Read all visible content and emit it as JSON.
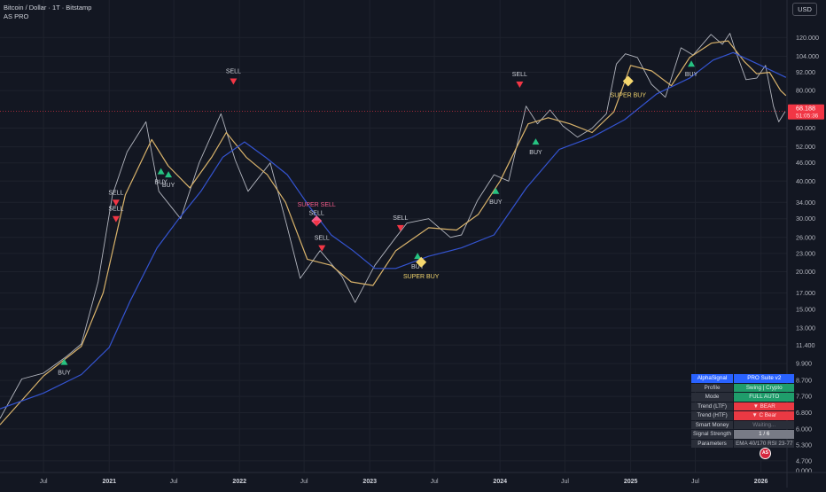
{
  "header": {
    "symbol_title": "Bitcoin / Dollar · 1T · Bitstamp",
    "indicator_name": "AS PRO",
    "currency": "USD"
  },
  "price_scale": {
    "log_scale": true,
    "ticks": [
      "120.000",
      "104.000",
      "92.000",
      "80.000",
      "60.000",
      "52.000",
      "46.000",
      "40.000",
      "34.000",
      "30.000",
      "26.000",
      "23.000",
      "20.000",
      "17.000",
      "15.000",
      "13.000",
      "11.400",
      "9.900",
      "8.700",
      "7.700",
      "6.800",
      "6.000",
      "5.300",
      "4.700",
      "0.000"
    ],
    "tick_values": [
      120000,
      104000,
      92000,
      80000,
      60000,
      52000,
      46000,
      40000,
      34000,
      30000,
      26000,
      23000,
      20000,
      17000,
      15000,
      13000,
      11400,
      9900,
      8700,
      7700,
      6800,
      6000,
      5300,
      4700
    ],
    "last_price_label": "68.188",
    "countdown_label": "51:05:36",
    "last_price": 68188
  },
  "time_axis": {
    "labels": [
      "Jul",
      "2021",
      "Jul",
      "2022",
      "Jul",
      "2023",
      "Jul",
      "2024",
      "Jul",
      "2025",
      "Jul",
      "2026"
    ],
    "label_dates": [
      "2020-07-01",
      "2021-01-01",
      "2021-07-01",
      "2022-01-01",
      "2022-07-01",
      "2023-01-01",
      "2023-07-01",
      "2024-01-01",
      "2024-07-01",
      "2025-01-01",
      "2025-07-01",
      "2026-01-01"
    ]
  },
  "chart_data": {
    "type": "line",
    "x_axis": "date",
    "y_scale": "log",
    "ylim": [
      4300,
      160000
    ],
    "xlim": [
      "2020-03-01",
      "2026-03-15"
    ],
    "series": [
      {
        "key": "price",
        "color": "#b2b5be",
        "x": [
          "2020-03-01",
          "2020-05-01",
          "2020-07-01",
          "2020-09-01",
          "2020-10-15",
          "2020-12-01",
          "2021-01-10",
          "2021-02-20",
          "2021-04-14",
          "2021-05-20",
          "2021-07-20",
          "2021-09-10",
          "2021-11-10",
          "2021-12-20",
          "2022-01-25",
          "2022-03-28",
          "2022-05-12",
          "2022-06-20",
          "2022-08-15",
          "2022-10-15",
          "2022-11-21",
          "2023-01-15",
          "2023-03-15",
          "2023-04-15",
          "2023-06-15",
          "2023-08-15",
          "2023-09-15",
          "2023-10-30",
          "2023-12-15",
          "2024-01-25",
          "2024-03-14",
          "2024-04-15",
          "2024-05-20",
          "2024-06-25",
          "2024-08-05",
          "2024-09-15",
          "2024-10-25",
          "2024-11-22",
          "2024-12-17",
          "2025-01-20",
          "2025-02-28",
          "2025-04-08",
          "2025-05-22",
          "2025-06-25",
          "2025-08-14",
          "2025-09-15",
          "2025-10-06",
          "2025-10-20",
          "2025-11-20",
          "2025-12-20",
          "2026-01-14",
          "2026-02-05",
          "2026-02-20",
          "2026-03-10"
        ],
        "y": [
          6500,
          8800,
          9200,
          10400,
          11500,
          18500,
          36000,
          50000,
          63000,
          37000,
          30000,
          46000,
          67000,
          47000,
          37000,
          46000,
          29000,
          19000,
          23500,
          19300,
          15800,
          21000,
          26000,
          29000,
          30000,
          26000,
          26500,
          34500,
          42000,
          40000,
          71000,
          62000,
          69000,
          61000,
          56000,
          60000,
          67000,
          98000,
          106000,
          103000,
          84000,
          76000,
          111000,
          105000,
          123000,
          114000,
          124000,
          110000,
          87000,
          88000,
          97000,
          71000,
          63000,
          68188
        ]
      },
      {
        "key": "ema_fast",
        "color": "#d9b36b",
        "x": [
          "2020-03-01",
          "2020-07-01",
          "2020-10-15",
          "2020-12-15",
          "2021-02-15",
          "2021-04-30",
          "2021-06-15",
          "2021-08-15",
          "2021-10-15",
          "2021-11-25",
          "2022-01-20",
          "2022-03-20",
          "2022-05-10",
          "2022-07-10",
          "2022-09-15",
          "2022-11-10",
          "2023-01-10",
          "2023-03-15",
          "2023-06-15",
          "2023-09-01",
          "2023-11-01",
          "2024-01-01",
          "2024-03-20",
          "2024-05-15",
          "2024-07-15",
          "2024-09-15",
          "2024-11-15",
          "2025-01-01",
          "2025-03-01",
          "2025-04-25",
          "2025-06-15",
          "2025-08-15",
          "2025-10-01",
          "2025-11-15",
          "2025-12-20",
          "2026-01-25",
          "2026-02-25",
          "2026-03-12"
        ],
        "y": [
          6200,
          9000,
          11300,
          17000,
          36000,
          55000,
          45000,
          38000,
          48000,
          58000,
          48000,
          42000,
          34000,
          22000,
          21000,
          18500,
          18000,
          23500,
          28000,
          27500,
          31000,
          40000,
          62000,
          65000,
          62000,
          58000,
          68000,
          97000,
          93000,
          83000,
          103000,
          115000,
          117000,
          100000,
          91000,
          92000,
          80000,
          77000
        ]
      },
      {
        "key": "ema_slow",
        "color": "#3454d1",
        "x": [
          "2020-03-01",
          "2020-07-01",
          "2020-10-15",
          "2021-01-01",
          "2021-03-01",
          "2021-05-15",
          "2021-07-15",
          "2021-09-15",
          "2021-11-15",
          "2022-01-15",
          "2022-03-15",
          "2022-05-15",
          "2022-07-15",
          "2022-09-15",
          "2022-11-15",
          "2023-01-15",
          "2023-03-15",
          "2023-06-15",
          "2023-09-15",
          "2023-12-15",
          "2024-03-15",
          "2024-06-15",
          "2024-09-15",
          "2024-12-15",
          "2025-03-15",
          "2025-06-15",
          "2025-08-20",
          "2025-10-15",
          "2025-12-15",
          "2026-03-12"
        ],
        "y": [
          7000,
          7900,
          9100,
          11200,
          16000,
          24000,
          30000,
          37000,
          48000,
          54000,
          48000,
          42000,
          33000,
          26500,
          23500,
          20500,
          20500,
          22500,
          24000,
          26500,
          38000,
          51000,
          56000,
          64000,
          78000,
          88000,
          101000,
          107000,
          99000,
          88500
        ]
      }
    ],
    "markers": [
      {
        "type": "buy",
        "label": "BUY",
        "date": "2020-08-28",
        "price": 10000
      },
      {
        "type": "sell",
        "label": "SELL",
        "date": "2021-01-20",
        "price": 30000
      },
      {
        "type": "sell",
        "label": "SELL",
        "date": "2021-01-20",
        "price": 34000
      },
      {
        "type": "buy",
        "label": "BUY",
        "date": "2021-05-26",
        "price": 43000
      },
      {
        "type": "buy",
        "label": "BUY",
        "date": "2021-06-16",
        "price": 42000
      },
      {
        "type": "sell",
        "label": "SELL",
        "date": "2021-12-15",
        "price": 86000
      },
      {
        "type": "super_sell",
        "label": "SUPER SELL",
        "date": "2022-08-05",
        "price": 29500
      },
      {
        "type": "sell",
        "label": "SELL",
        "date": "2022-08-05",
        "price": 29000
      },
      {
        "type": "sell",
        "label": "SELL",
        "date": "2022-08-20",
        "price": 24000
      },
      {
        "type": "sell",
        "label": "SELL",
        "date": "2023-03-28",
        "price": 28000
      },
      {
        "type": "buy",
        "label": "BUY",
        "date": "2023-05-15",
        "price": 22500
      },
      {
        "type": "super_buy",
        "label": "SUPER BUY",
        "date": "2023-05-25",
        "price": 21500
      },
      {
        "type": "buy",
        "label": "BUY",
        "date": "2023-12-20",
        "price": 37000
      },
      {
        "type": "sell",
        "label": "SELL",
        "date": "2024-02-25",
        "price": 84000
      },
      {
        "type": "buy",
        "label": "BUY",
        "date": "2024-04-10",
        "price": 54000
      },
      {
        "type": "super_buy",
        "label": "SUPER BUY",
        "date": "2024-12-25",
        "price": 86000
      },
      {
        "type": "buy",
        "label": "BUY",
        "date": "2025-06-20",
        "price": 98000
      }
    ],
    "grid": true,
    "legend": "none",
    "title": ""
  },
  "info_table": {
    "rows": [
      {
        "key": "AlphaSignal",
        "value": "PRO Suite v2",
        "style": "hdr"
      },
      {
        "key": "Profile",
        "value": "Swing | Crypto",
        "style": "g"
      },
      {
        "key": "Mode",
        "value": "FULL AUTO",
        "style": "g"
      },
      {
        "key": "Trend (LTF)",
        "value": "▼ BEAR",
        "style": "r"
      },
      {
        "key": "Trend (HTF)",
        "value": "▼ C Bear",
        "style": "r"
      },
      {
        "key": "Smart Money",
        "value": "Waiting...",
        "style": "d"
      },
      {
        "key": "Signal Strength",
        "value": "1 / 6",
        "style": "s"
      },
      {
        "key": "Parameters",
        "value": "EMA 40/170 RSI 23-77",
        "style": "p"
      }
    ]
  },
  "colors": {
    "background": "#131722",
    "grid": "#1e222d",
    "buy": "#26c281",
    "sell": "#f23645",
    "super_buy": "#f5d76e",
    "super_sell": "#f75d8c",
    "price_label_bg": "#f23645"
  },
  "watermark": {
    "icon": "logo-badge-icon",
    "text": "AS"
  }
}
